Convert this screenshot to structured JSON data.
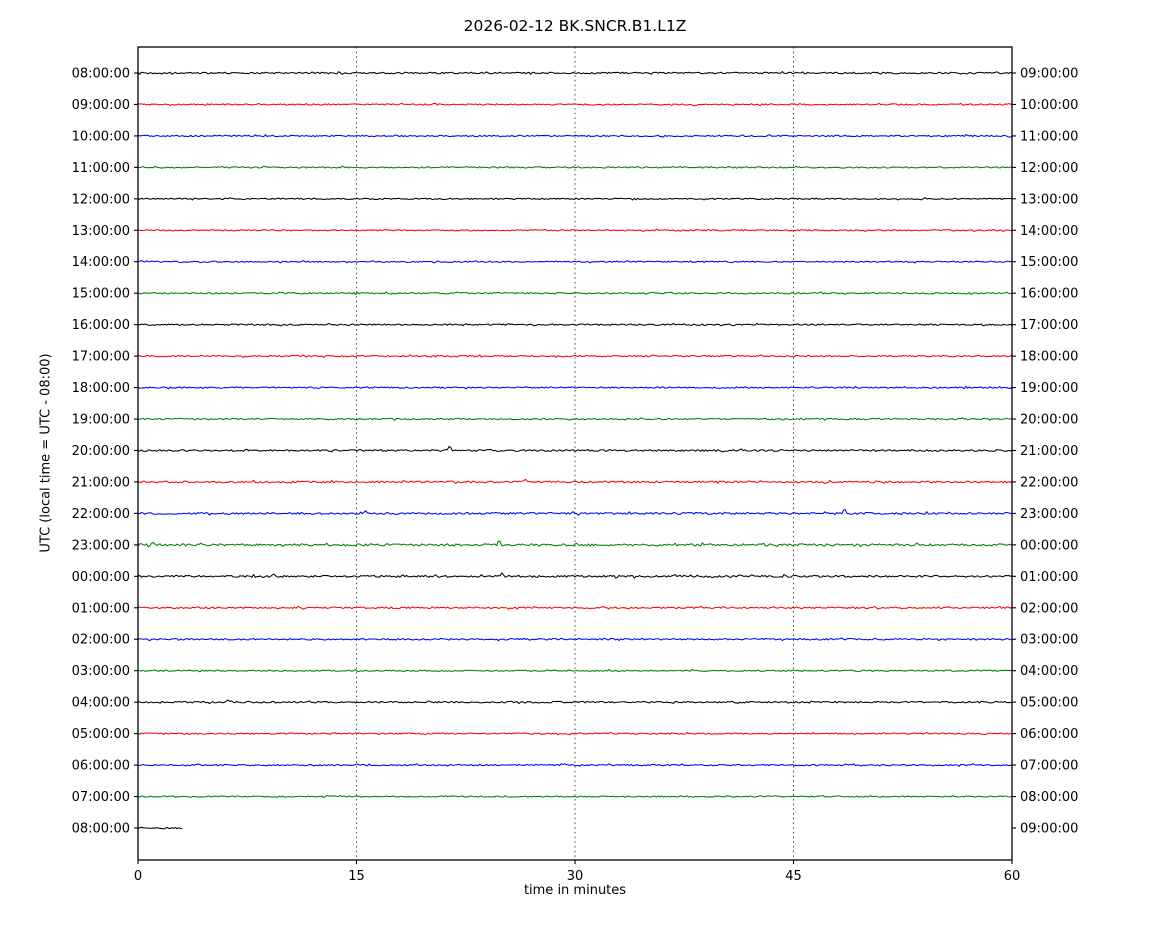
{
  "chart_data": {
    "type": "line",
    "subtype": "seismic-helicorder-dayplot",
    "title": "2026-02-12 BK.SNCR.B1.L1Z",
    "xlabel": "time in minutes",
    "ylabel": "UTC (local time = UTC - 08:00)",
    "xlim": [
      0,
      60
    ],
    "x_ticks": [
      0,
      15,
      30,
      45,
      60
    ],
    "grid": {
      "vertical_minutes": [
        15,
        30,
        45
      ],
      "style": "dotted"
    },
    "legend": "none",
    "trace_color_cycle": [
      "#000000",
      "#ff0000",
      "#0000ff",
      "#008000"
    ],
    "rows": [
      {
        "left_label": "08:00:00",
        "right_label": "09:00:00",
        "color": "#000000",
        "duration_minutes": 60,
        "noise_amp": 1.6
      },
      {
        "left_label": "09:00:00",
        "right_label": "10:00:00",
        "color": "#ff0000",
        "duration_minutes": 60,
        "noise_amp": 1.3
      },
      {
        "left_label": "10:00:00",
        "right_label": "11:00:00",
        "color": "#0000ff",
        "duration_minutes": 60,
        "noise_amp": 1.4
      },
      {
        "left_label": "11:00:00",
        "right_label": "12:00:00",
        "color": "#008000",
        "duration_minutes": 60,
        "noise_amp": 1.4
      },
      {
        "left_label": "12:00:00",
        "right_label": "13:00:00",
        "color": "#000000",
        "duration_minutes": 60,
        "noise_amp": 1.3
      },
      {
        "left_label": "13:00:00",
        "right_label": "14:00:00",
        "color": "#ff0000",
        "duration_minutes": 60,
        "noise_amp": 1.3
      },
      {
        "left_label": "14:00:00",
        "right_label": "15:00:00",
        "color": "#0000ff",
        "duration_minutes": 60,
        "noise_amp": 1.3
      },
      {
        "left_label": "15:00:00",
        "right_label": "16:00:00",
        "color": "#008000",
        "duration_minutes": 60,
        "noise_amp": 1.4
      },
      {
        "left_label": "16:00:00",
        "right_label": "17:00:00",
        "color": "#000000",
        "duration_minutes": 60,
        "noise_amp": 1.4
      },
      {
        "left_label": "17:00:00",
        "right_label": "18:00:00",
        "color": "#ff0000",
        "duration_minutes": 60,
        "noise_amp": 1.5
      },
      {
        "left_label": "18:00:00",
        "right_label": "19:00:00",
        "color": "#0000ff",
        "duration_minutes": 60,
        "noise_amp": 1.4
      },
      {
        "left_label": "19:00:00",
        "right_label": "20:00:00",
        "color": "#008000",
        "duration_minutes": 60,
        "noise_amp": 1.4
      },
      {
        "left_label": "20:00:00",
        "right_label": "21:00:00",
        "color": "#000000",
        "duration_minutes": 60,
        "noise_amp": 1.8
      },
      {
        "left_label": "21:00:00",
        "right_label": "22:00:00",
        "color": "#ff0000",
        "duration_minutes": 60,
        "noise_amp": 1.8
      },
      {
        "left_label": "22:00:00",
        "right_label": "23:00:00",
        "color": "#0000ff",
        "duration_minutes": 60,
        "noise_amp": 1.9
      },
      {
        "left_label": "23:00:00",
        "right_label": "00:00:00",
        "color": "#008000",
        "duration_minutes": 60,
        "noise_amp": 2.2
      },
      {
        "left_label": "00:00:00",
        "right_label": "01:00:00",
        "color": "#000000",
        "duration_minutes": 60,
        "noise_amp": 2.0
      },
      {
        "left_label": "01:00:00",
        "right_label": "02:00:00",
        "color": "#ff0000",
        "duration_minutes": 60,
        "noise_amp": 1.5
      },
      {
        "left_label": "02:00:00",
        "right_label": "03:00:00",
        "color": "#0000ff",
        "duration_minutes": 60,
        "noise_amp": 1.5
      },
      {
        "left_label": "03:00:00",
        "right_label": "04:00:00",
        "color": "#008000",
        "duration_minutes": 60,
        "noise_amp": 1.3
      },
      {
        "left_label": "04:00:00",
        "right_label": "05:00:00",
        "color": "#000000",
        "duration_minutes": 60,
        "noise_amp": 1.6
      },
      {
        "left_label": "05:00:00",
        "right_label": "06:00:00",
        "color": "#ff0000",
        "duration_minutes": 60,
        "noise_amp": 1.3
      },
      {
        "left_label": "06:00:00",
        "right_label": "07:00:00",
        "color": "#0000ff",
        "duration_minutes": 60,
        "noise_amp": 1.4
      },
      {
        "left_label": "07:00:00",
        "right_label": "08:00:00",
        "color": "#008000",
        "duration_minutes": 60,
        "noise_amp": 1.2
      },
      {
        "left_label": "08:00:00",
        "right_label": "09:00:00",
        "color": "#000000",
        "duration_minutes": 3.1,
        "noise_amp": 1.4
      }
    ],
    "events": [
      {
        "row": 12,
        "minute": 21.4,
        "amp": 5.5
      },
      {
        "row": 13,
        "minute": 26.6,
        "amp": 2.5
      },
      {
        "row": 14,
        "minute": 15.6,
        "amp": 2.5
      },
      {
        "row": 14,
        "minute": 48.5,
        "amp": 4.5
      },
      {
        "row": 15,
        "minute": 1.0,
        "amp": 2.5
      },
      {
        "row": 15,
        "minute": 24.8,
        "amp": 5.0
      },
      {
        "row": 16,
        "minute": 9.3,
        "amp": 2.0
      },
      {
        "row": 16,
        "minute": 25.0,
        "amp": 3.0
      },
      {
        "row": 20,
        "minute": 6.2,
        "amp": 2.0
      }
    ]
  }
}
